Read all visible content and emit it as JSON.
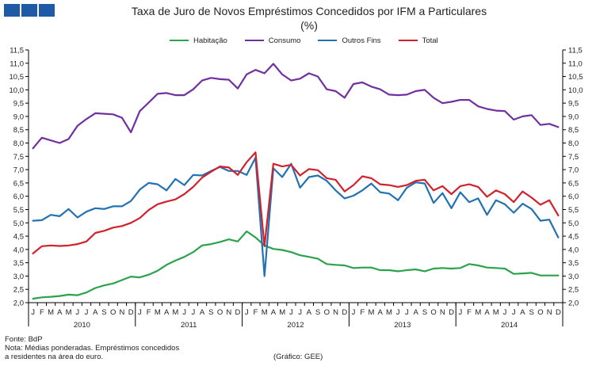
{
  "header": {
    "title_line1": "Taxa de Juro de Novos Empréstimos  Concedidos por IFM a Particulares",
    "title_line2": "(%)"
  },
  "footer": {
    "source": "Fonte: BdP",
    "note_line1": "Nota: Médias ponderadas. Empréstimos concedidos",
    "note_line2": "a residentes na área do euro.",
    "credit": "(Gráfico: GEE)"
  },
  "colors": {
    "brand_boxes": "#1f5aa6",
    "habitacao": "#2ca24c",
    "consumo": "#7030a0",
    "outros_fins": "#2271b3",
    "total": "#d0222d"
  },
  "chart_data": {
    "type": "line",
    "title": "Taxa de Juro de Novos Empréstimos  Concedidos por IFM a Particulares",
    "subtitle": "(%)",
    "x_month_labels": [
      "J",
      "F",
      "M",
      "A",
      "M",
      "J",
      "J",
      "A",
      "S",
      "O",
      "N",
      "D"
    ],
    "years": [
      "2010",
      "2011",
      "2012",
      "2013",
      "2014"
    ],
    "ylim": [
      2.0,
      11.5
    ],
    "y_ticks": [
      "2,0",
      "2,5",
      "3,0",
      "3,5",
      "4,0",
      "4,5",
      "5,0",
      "5,5",
      "6,0",
      "6,5",
      "7,0",
      "7,5",
      "8,0",
      "8,5",
      "9,0",
      "9,5",
      "10,0",
      "10,5",
      "11,0",
      "11,5"
    ],
    "grid": false,
    "legend_position": "top",
    "series": [
      {
        "name": "Habitação",
        "values": [
          2.15,
          2.2,
          2.22,
          2.25,
          2.3,
          2.28,
          2.38,
          2.55,
          2.65,
          2.72,
          2.85,
          2.98,
          2.95,
          3.05,
          3.2,
          3.42,
          3.58,
          3.72,
          3.9,
          4.15,
          4.2,
          4.28,
          4.38,
          4.3,
          4.68,
          4.45,
          4.15,
          4.02,
          3.98,
          3.9,
          3.78,
          3.72,
          3.65,
          3.45,
          3.42,
          3.4,
          3.3,
          3.32,
          3.32,
          3.22,
          3.22,
          3.18,
          3.22,
          3.25,
          3.18,
          3.28,
          3.3,
          3.28,
          3.3,
          3.45,
          3.4,
          3.32,
          3.3,
          3.28,
          3.08,
          3.1,
          3.12,
          3.02,
          3.02,
          3.02
        ]
      },
      {
        "name": "Consumo",
        "values": [
          7.8,
          8.2,
          8.1,
          8.0,
          8.15,
          8.65,
          8.9,
          9.12,
          9.1,
          9.08,
          8.95,
          8.4,
          9.2,
          9.52,
          9.85,
          9.88,
          9.8,
          9.8,
          10.02,
          10.35,
          10.45,
          10.4,
          10.38,
          10.05,
          10.58,
          10.75,
          10.62,
          10.98,
          10.58,
          10.35,
          10.42,
          10.62,
          10.5,
          10.02,
          9.95,
          9.7,
          10.22,
          10.28,
          10.12,
          10.02,
          9.82,
          9.8,
          9.82,
          9.95,
          10.0,
          9.7,
          9.5,
          9.55,
          9.62,
          9.62,
          9.38,
          9.28,
          9.22,
          9.2,
          8.88,
          9.0,
          9.05,
          8.68,
          8.72,
          8.6
        ]
      },
      {
        "name": "Outros Fins",
        "values": [
          5.08,
          5.1,
          5.3,
          5.25,
          5.52,
          5.2,
          5.42,
          5.55,
          5.52,
          5.62,
          5.62,
          5.82,
          6.25,
          6.5,
          6.45,
          6.22,
          6.65,
          6.42,
          6.8,
          6.78,
          6.95,
          7.1,
          6.95,
          6.95,
          6.8,
          7.45,
          3.0,
          7.05,
          6.72,
          7.22,
          6.32,
          6.72,
          6.78,
          6.58,
          6.22,
          5.92,
          6.02,
          6.22,
          6.48,
          6.15,
          6.1,
          5.85,
          6.32,
          6.52,
          6.48,
          5.75,
          6.12,
          5.55,
          6.15,
          5.78,
          5.92,
          5.3,
          5.85,
          5.7,
          5.38,
          5.72,
          5.52,
          5.08,
          5.12,
          4.45
        ]
      },
      {
        "name": "Total",
        "values": [
          3.85,
          4.12,
          4.15,
          4.13,
          4.15,
          4.2,
          4.3,
          4.62,
          4.7,
          4.82,
          4.88,
          5.0,
          5.18,
          5.48,
          5.7,
          5.8,
          5.88,
          6.08,
          6.35,
          6.7,
          6.92,
          7.12,
          7.08,
          6.8,
          7.28,
          7.65,
          4.12,
          7.22,
          7.12,
          7.18,
          6.78,
          7.02,
          6.98,
          6.68,
          6.62,
          6.18,
          6.42,
          6.75,
          6.68,
          6.45,
          6.42,
          6.35,
          6.42,
          6.58,
          6.62,
          6.22,
          6.38,
          6.08,
          6.38,
          6.45,
          6.35,
          5.98,
          6.22,
          6.08,
          5.78,
          6.18,
          5.95,
          5.68,
          5.85,
          5.28
        ]
      }
    ]
  }
}
